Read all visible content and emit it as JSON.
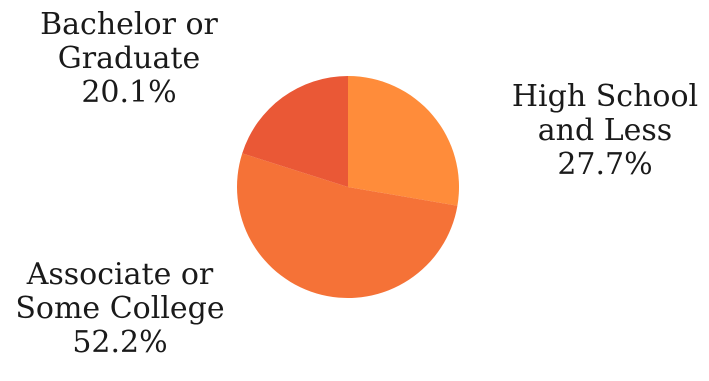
{
  "chart_data": {
    "type": "pie",
    "title": "",
    "legend": "none",
    "slices": [
      {
        "label_lines": [
          "High School",
          "and Less"
        ],
        "value": 27.7,
        "value_label": "27.7%",
        "color": "#FF8C3A"
      },
      {
        "label_lines": [
          "Associate or",
          "Some College"
        ],
        "value": 52.2,
        "value_label": "52.2%",
        "color": "#F57237"
      },
      {
        "label_lines": [
          "Bachelor or",
          "Graduate"
        ],
        "value": 20.1,
        "value_label": "20.1%",
        "color": "#EA5836"
      }
    ]
  }
}
